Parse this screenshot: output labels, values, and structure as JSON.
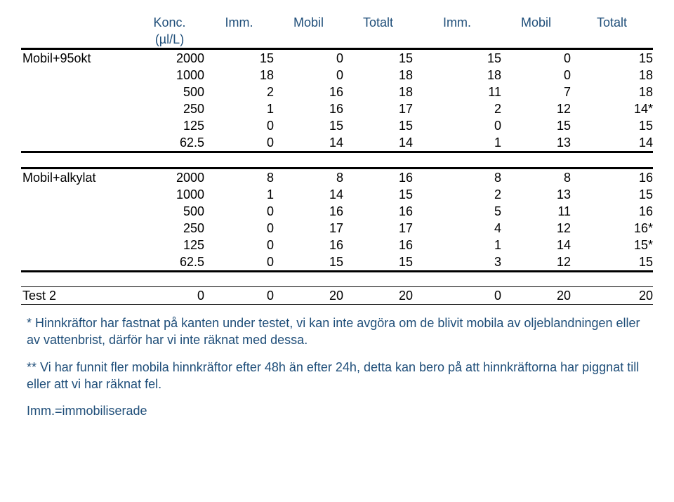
{
  "headers": {
    "c2": "Konc.",
    "c3": "Imm.",
    "c4": "Mobil",
    "c5": "Totalt",
    "c6": "Imm.",
    "c7": "Mobil",
    "c8": "Totalt",
    "unit": "(µl/L)"
  },
  "block1": {
    "label": "Mobil+95okt",
    "rows": [
      [
        "2000",
        "15",
        "0",
        "15",
        "15",
        "0",
        "15"
      ],
      [
        "1000",
        "18",
        "0",
        "18",
        "18",
        "0",
        "18"
      ],
      [
        "500",
        "2",
        "16",
        "18",
        "11",
        "7",
        "18"
      ],
      [
        "250",
        "1",
        "16",
        "17",
        "2",
        "12",
        "14*"
      ],
      [
        "125",
        "0",
        "15",
        "15",
        "0",
        "15",
        "15"
      ],
      [
        "62.5",
        "0",
        "14",
        "14",
        "1",
        "13",
        "14"
      ]
    ]
  },
  "block2": {
    "label": "Mobil+alkylat",
    "rows": [
      [
        "2000",
        "8",
        "8",
        "16",
        "8",
        "8",
        "16"
      ],
      [
        "1000",
        "1",
        "14",
        "15",
        "2",
        "13",
        "15"
      ],
      [
        "500",
        "0",
        "16",
        "16",
        "5",
        "11",
        "16"
      ],
      [
        "250",
        "0",
        "17",
        "17",
        "4",
        "12",
        "16*"
      ],
      [
        "125",
        "0",
        "16",
        "16",
        "1",
        "14",
        "15*"
      ],
      [
        "62.5",
        "0",
        "15",
        "15",
        "3",
        "12",
        "15"
      ]
    ]
  },
  "block3": {
    "label": "Test 2",
    "rows": [
      [
        "",
        "0",
        "0",
        "20",
        "20",
        "0",
        "20",
        "20"
      ]
    ]
  },
  "notes": {
    "n1": "* Hinnkräftor har fastnat på kanten under testet, vi kan inte avgöra om de blivit mobila av oljeblandningen eller av vattenbrist, därför har vi inte räknat med dessa.",
    "n2": "** Vi har funnit fler mobila hinnkräftor efter 48h än efter 24h, detta kan bero på att hinnkräftorna har piggnat till eller att vi har räknat fel.",
    "n3": "Imm.=immobiliserade"
  },
  "layout": {
    "colwidths": [
      "18%",
      "11%",
      "11%",
      "11%",
      "11%",
      "14%",
      "11%",
      "13%"
    ]
  }
}
